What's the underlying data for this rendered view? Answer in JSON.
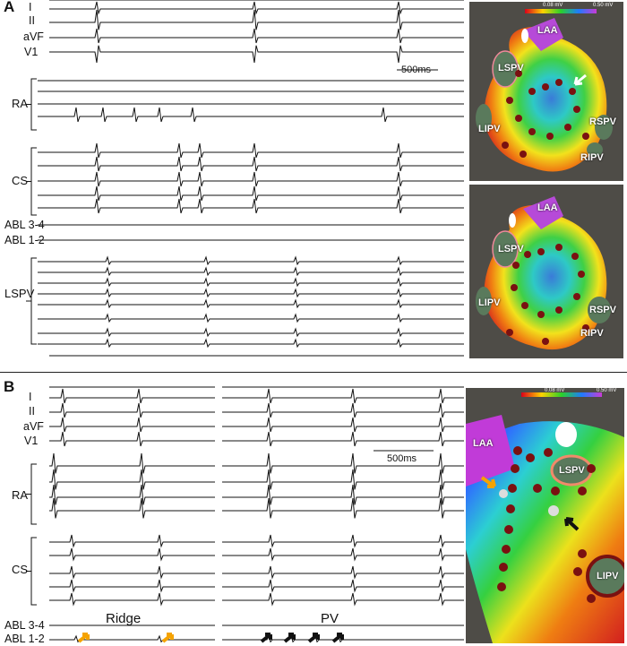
{
  "panels": {
    "a": {
      "letter": "A",
      "leads_top": [
        "I",
        "II",
        "aVF",
        "V1"
      ],
      "groups": [
        "RA",
        "CS",
        "LSPV"
      ],
      "abl": [
        "ABL 3-4",
        "ABL 1-2"
      ],
      "scale_bar": "500ms",
      "map_top_labels": [
        "LAA",
        "LSPV",
        "LIPV",
        "RSPV",
        "RIPV"
      ],
      "map_bottom_labels": [
        "LAA",
        "LSPV",
        "LIPV",
        "RSPV",
        "RIPV"
      ],
      "colorbar": [
        "0.08 mV",
        "0.50 mV"
      ]
    },
    "b": {
      "letter": "B",
      "leads_top": [
        "I",
        "II",
        "aVF",
        "V1"
      ],
      "groups": [
        "RA",
        "CS"
      ],
      "abl": [
        "ABL 3-4",
        "ABL 1-2"
      ],
      "scale_bar": "500ms",
      "annotations": [
        "Ridge",
        "PV"
      ],
      "map_labels": [
        "LAA",
        "LSPV",
        "LIPV"
      ],
      "colorbar": [
        "0.08 mV",
        "0.50 mV"
      ]
    }
  },
  "colors": {
    "trace": "#111111",
    "arrow_yellow": "#f5a300",
    "arrow_black": "#111111",
    "arrow_white": "#ffffff",
    "lesion": "#7a1111",
    "map_bg": "#4e4c47"
  },
  "icons": [
    "white-arrow-icon",
    "yellow-arrow-icon",
    "black-arrow-icon"
  ]
}
